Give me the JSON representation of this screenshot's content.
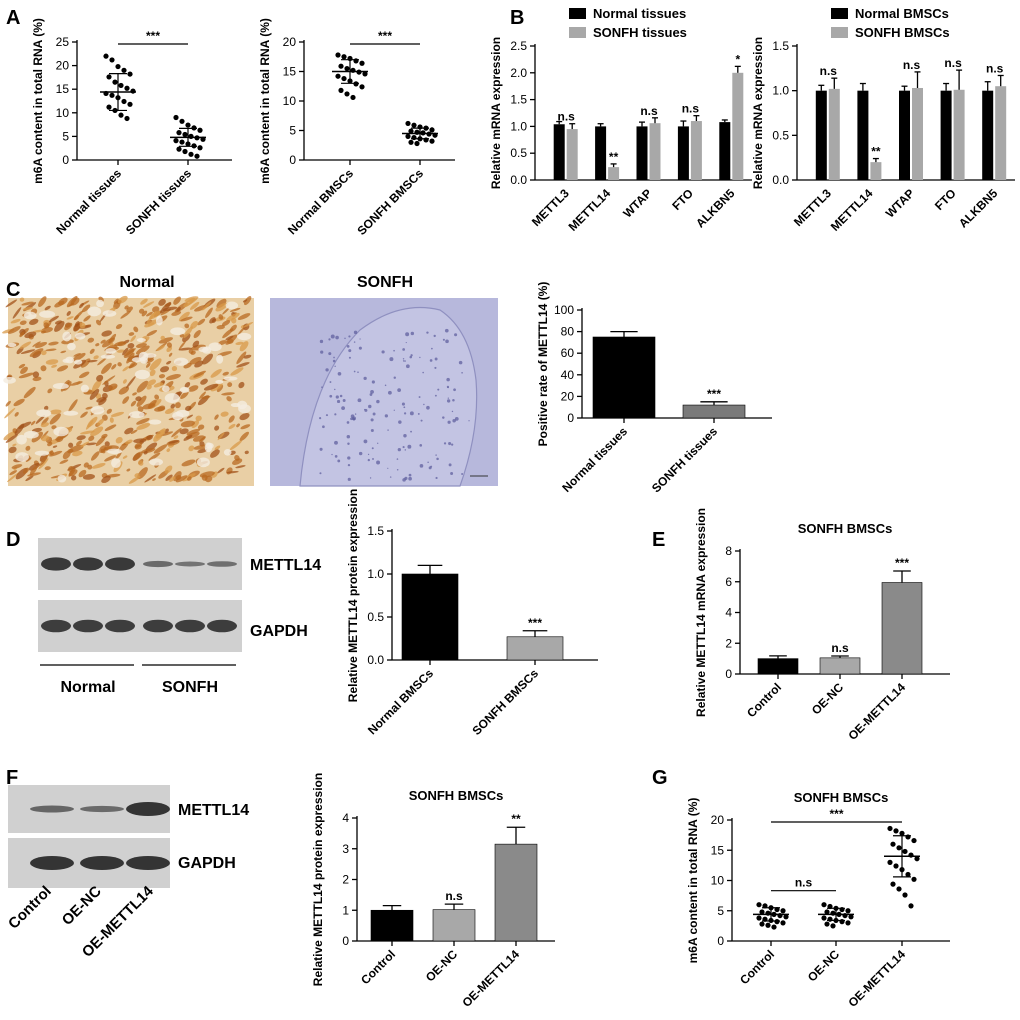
{
  "panel_labels": [
    "A",
    "B",
    "C",
    "D",
    "E",
    "F",
    "G"
  ],
  "colors": {
    "black": "#000000",
    "light_gray": "#a8a8a8",
    "mid_gray": "#8a8a8a",
    "dark_gray": "#7a7a7a",
    "ihc_normal": "#c98a3a",
    "ihc_sonfh": "#b7b8dc",
    "blot_bg": "#d0d0d0",
    "band": "#2b2b2b"
  },
  "chart_data": [
    {
      "id": "A1",
      "type": "scatter",
      "ylabel": "m6A content in total RNA (%)",
      "ylim": [
        0,
        25
      ],
      "yticks": [
        "0",
        "5",
        "10",
        "15",
        "20",
        "25"
      ],
      "categories": [
        "Normal tissues",
        "SONFH tissues"
      ],
      "significance": [
        {
          "text": "***",
          "between": [
            0,
            1
          ]
        }
      ],
      "series": [
        {
          "mean": 14.4,
          "sd": 3.9,
          "values": [
            22.0,
            21.2,
            19.8,
            19.0,
            18.2,
            17.6,
            16.5,
            15.8,
            15.2,
            14.6,
            14.1,
            13.7,
            13.2,
            12.4,
            11.8,
            11.2,
            10.5,
            9.5,
            8.8
          ]
        },
        {
          "mean": 4.8,
          "sd": 1.9,
          "values": [
            9.0,
            8.2,
            7.4,
            6.8,
            6.3,
            5.8,
            5.4,
            5.0,
            4.7,
            4.4,
            4.1,
            3.8,
            3.4,
            3.0,
            2.6,
            2.3,
            1.8,
            1.2,
            0.8
          ]
        }
      ]
    },
    {
      "id": "A2",
      "type": "scatter",
      "ylabel": "m6A content in total RNA (%)",
      "ylim": [
        0,
        20
      ],
      "yticks": [
        "0",
        "5",
        "10",
        "15",
        "20"
      ],
      "categories": [
        "Normal BMSCs",
        "SONFH BMSCs"
      ],
      "significance": [
        {
          "text": "***",
          "between": [
            0,
            1
          ]
        }
      ],
      "series": [
        {
          "mean": 15.0,
          "sd": 2.0,
          "values": [
            17.8,
            17.5,
            17.2,
            16.8,
            16.4,
            15.9,
            15.5,
            15.2,
            14.9,
            14.6,
            14.2,
            13.8,
            13.4,
            12.9,
            12.4,
            11.8,
            11.2,
            10.6
          ]
        },
        {
          "mean": 4.5,
          "sd": 0.9,
          "values": [
            6.2,
            5.9,
            5.6,
            5.4,
            5.1,
            4.9,
            4.7,
            4.6,
            4.4,
            4.2,
            4.0,
            3.8,
            3.6,
            3.4,
            3.2,
            3.0,
            2.8
          ]
        }
      ]
    },
    {
      "id": "B1",
      "type": "bar",
      "ylabel": "Relative mRNA expression",
      "ylim": [
        0,
        2.5
      ],
      "yticks": [
        "0.0",
        "0.5",
        "1.0",
        "1.5",
        "2.0",
        "2.5"
      ],
      "categories": [
        "METTL3",
        "METTL14",
        "WTAP",
        "FTO",
        "ALKBN5"
      ],
      "legend": [
        "Normal tissues",
        "SONFH tissues"
      ],
      "series": [
        {
          "name": "Normal tissues",
          "values": [
            1.04,
            1.0,
            1.0,
            1.0,
            1.08
          ],
          "err": [
            0.05,
            0.05,
            0.08,
            0.1,
            0.04
          ]
        },
        {
          "name": "SONFH tissues",
          "values": [
            0.95,
            0.24,
            1.06,
            1.1,
            2.0
          ],
          "err": [
            0.1,
            0.06,
            0.1,
            0.1,
            0.12
          ]
        }
      ],
      "annotations": [
        "n.s",
        "**",
        "n.s",
        "n.s",
        "*"
      ]
    },
    {
      "id": "B2",
      "type": "bar",
      "ylabel": "Relative mRNA expression",
      "ylim": [
        0,
        1.5
      ],
      "yticks": [
        "0.0",
        "0.5",
        "1.0",
        "1.5"
      ],
      "categories": [
        "METTL3",
        "METTL14",
        "WTAP",
        "FTO",
        "ALKBN5"
      ],
      "legend": [
        "Normal BMSCs",
        "SONFH BMSCs"
      ],
      "series": [
        {
          "name": "Normal BMSCs",
          "values": [
            1.0,
            1.0,
            1.0,
            1.0,
            1.0
          ],
          "err": [
            0.06,
            0.08,
            0.05,
            0.08,
            0.1
          ]
        },
        {
          "name": "SONFH BMSCs",
          "values": [
            1.02,
            0.2,
            1.03,
            1.01,
            1.05
          ],
          "err": [
            0.12,
            0.04,
            0.18,
            0.22,
            0.12
          ]
        }
      ],
      "annotations": [
        "n.s",
        "**",
        "n.s",
        "n.s",
        "n.s"
      ]
    },
    {
      "id": "C",
      "type": "bar",
      "ylabel": "Positive rate of METTL14 (%)",
      "ylim": [
        0,
        100
      ],
      "yticks": [
        "0",
        "20",
        "40",
        "60",
        "80",
        "100"
      ],
      "categories": [
        "Normal tissues",
        "SONFH tissues"
      ],
      "values": [
        75,
        12
      ],
      "err": [
        5,
        3
      ],
      "annotations": [
        "",
        "***"
      ]
    },
    {
      "id": "D",
      "type": "bar",
      "ylabel": "Relative METTL14 protein expression",
      "ylim": [
        0,
        1.5
      ],
      "yticks": [
        "0.0",
        "0.5",
        "1.0",
        "1.5"
      ],
      "categories": [
        "Normal BMSCs",
        "SONFH BMSCs"
      ],
      "values": [
        1.0,
        0.27
      ],
      "err": [
        0.1,
        0.07
      ],
      "annotations": [
        "",
        "***"
      ]
    },
    {
      "id": "E",
      "type": "bar",
      "title": "SONFH BMSCs",
      "ylabel": "Relative METTL14 mRNA expression",
      "ylim": [
        0,
        8
      ],
      "yticks": [
        "0",
        "2",
        "4",
        "6",
        "8"
      ],
      "categories": [
        "Control",
        "OE-NC",
        "OE-METTL14"
      ],
      "values": [
        1.0,
        1.05,
        5.95
      ],
      "err": [
        0.18,
        0.12,
        0.75
      ],
      "annotations": [
        "",
        "n.s",
        "***"
      ]
    },
    {
      "id": "F",
      "type": "bar",
      "title": "SONFH BMSCs",
      "ylabel": "Relative METTL14 protein expression",
      "ylim": [
        0,
        4
      ],
      "yticks": [
        "0",
        "1",
        "2",
        "3",
        "4"
      ],
      "categories": [
        "Control",
        "OE-NC",
        "OE-METTL14"
      ],
      "values": [
        1.0,
        1.02,
        3.15
      ],
      "err": [
        0.15,
        0.18,
        0.55
      ],
      "annotations": [
        "",
        "n.s",
        "**"
      ]
    },
    {
      "id": "G",
      "type": "scatter",
      "title": "SONFH BMSCs",
      "ylabel": "m6A content in total RNA (%)",
      "ylim": [
        0,
        20
      ],
      "yticks": [
        "0",
        "5",
        "10",
        "15",
        "20"
      ],
      "categories": [
        "Control",
        "OE-NC",
        "OE-METTL14"
      ],
      "significance": [
        {
          "text": "n.s",
          "between": [
            0,
            1
          ]
        },
        {
          "text": "***",
          "between": [
            0,
            2
          ]
        }
      ],
      "series": [
        {
          "mean": 4.4,
          "sd": 1.1,
          "values": [
            6.0,
            5.8,
            5.5,
            5.2,
            5.0,
            4.8,
            4.6,
            4.4,
            4.2,
            4.0,
            3.8,
            3.6,
            3.4,
            3.2,
            3.0,
            2.8,
            2.6,
            2.3
          ]
        },
        {
          "mean": 4.4,
          "sd": 1.0,
          "values": [
            6.0,
            5.7,
            5.4,
            5.2,
            5.0,
            4.8,
            4.6,
            4.4,
            4.2,
            4.0,
            3.8,
            3.6,
            3.4,
            3.2,
            3.0,
            2.8,
            2.5
          ]
        },
        {
          "mean": 14.0,
          "sd": 3.4,
          "values": [
            18.6,
            18.2,
            17.8,
            17.2,
            16.6,
            16.0,
            15.4,
            14.8,
            14.2,
            13.6,
            13.0,
            12.4,
            11.8,
            11.0,
            10.2,
            9.4,
            8.6,
            7.6,
            5.8
          ]
        }
      ]
    }
  ],
  "panel_C_images": {
    "left_title": "Normal",
    "right_title": "SONFH"
  },
  "panel_D_blot": {
    "bands": [
      "METTL14",
      "GAPDH"
    ],
    "groups": [
      "Normal",
      "SONFH"
    ],
    "intensity": [
      0.95,
      0.95,
      0.95,
      0.45,
      0.35,
      0.4
    ]
  },
  "panel_F_blot": {
    "bands": [
      "METTL14",
      "GAPDH"
    ],
    "lanes": [
      "Control",
      "OE-NC",
      "OE-METTL14"
    ],
    "intensity": [
      0.5,
      0.45,
      1.0
    ]
  }
}
